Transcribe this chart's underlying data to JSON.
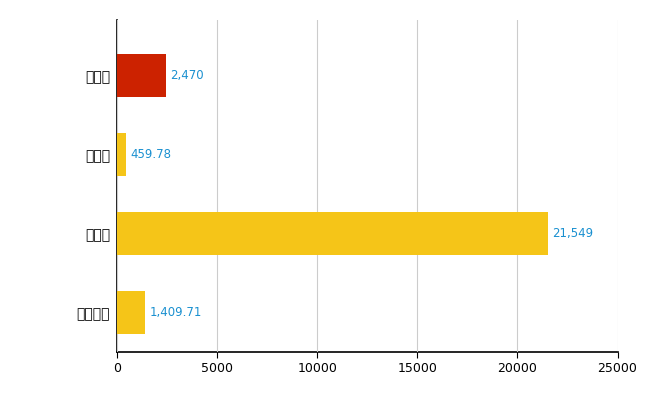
{
  "categories": [
    "豊平区",
    "県平均",
    "県最大",
    "全国平均"
  ],
  "values": [
    2470,
    459.78,
    21549,
    1409.71
  ],
  "labels": [
    "2,470",
    "459.78",
    "21,549",
    "1,409.71"
  ],
  "bar_colors": [
    "#cc2200",
    "#f5c518",
    "#f5c518",
    "#f5c518"
  ],
  "xticks": [
    0,
    5000,
    10000,
    15000,
    20000,
    25000
  ],
  "background_color": "#ffffff",
  "grid_color": "#cccccc",
  "label_color": "#1a90d0",
  "bar_height": 0.55,
  "figsize": [
    6.5,
    4.0
  ],
  "dpi": 100
}
